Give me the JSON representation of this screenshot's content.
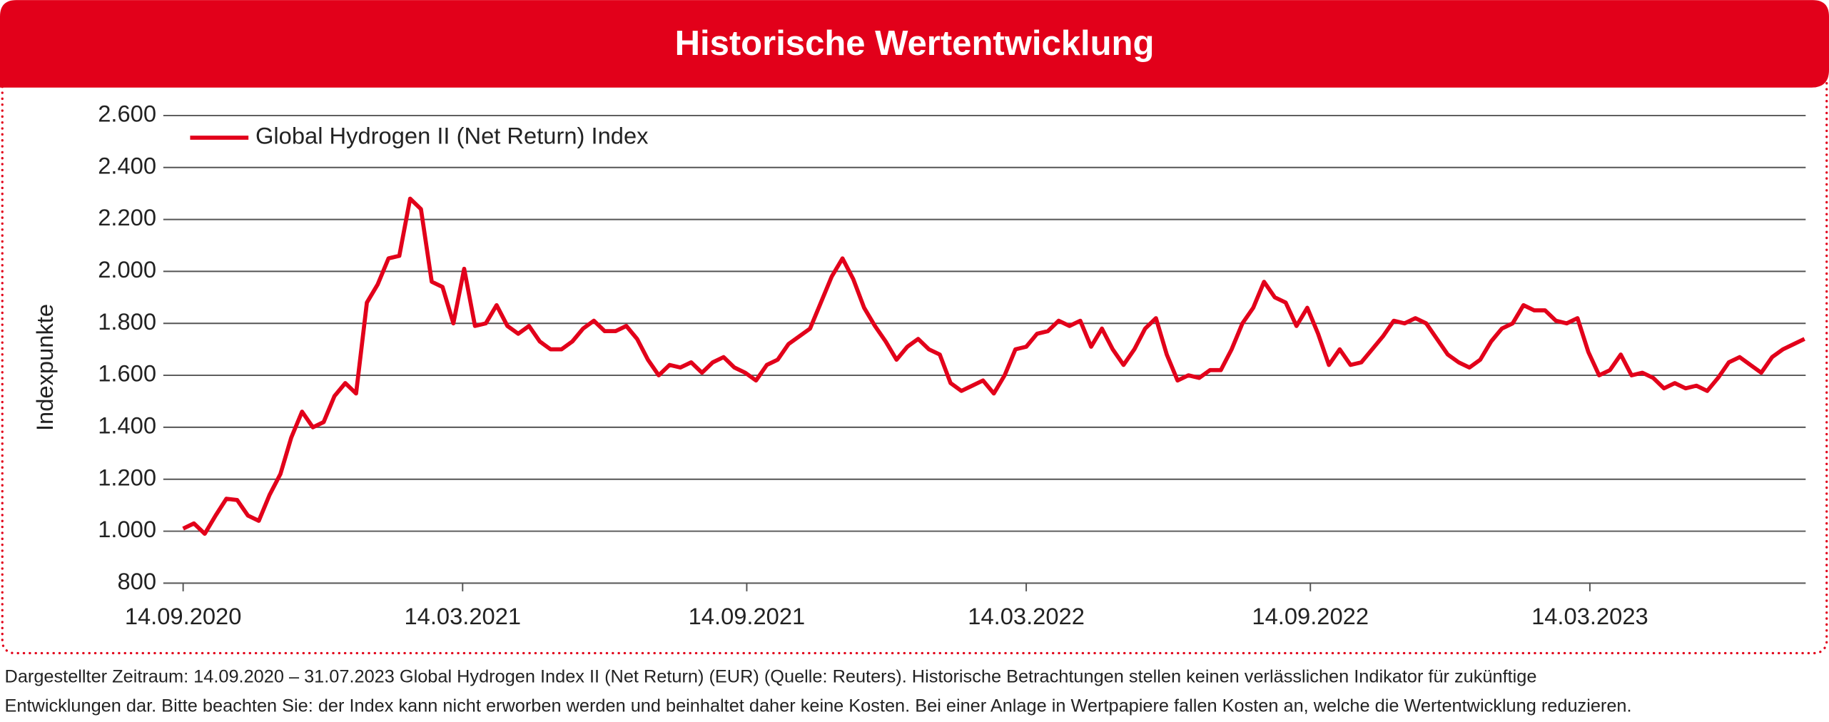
{
  "chart_data": {
    "type": "line",
    "title": "Historische Wertentwicklung",
    "y_label": "Indexpunkte",
    "footnote": [
      "Dargestellter Zeitraum: 14.09.2020 – 31.07.2023 Global Hydrogen Index II (Net Return) (EUR) (Quelle: Reuters). Historische Betrachtungen stellen keinen verlässlichen Indikator für zukünftige",
      "Entwicklungen dar. Bitte beachten Sie: der Index kann nicht erworben werden und beinhaltet daher keine Kosten. Bei einer Anlage in Wertpapiere fallen Kosten an, welche die Wertentwicklung reduzieren."
    ],
    "xlim": [
      "14.09.2020",
      "31.07.2023"
    ],
    "xticks": [
      "14.09.2020",
      "14.03.2021",
      "14.09.2021",
      "14.03.2022",
      "14.09.2022",
      "14.03.2023"
    ],
    "ylim": [
      800,
      2600
    ],
    "yticks": [
      800,
      {
        "value": 1000,
        "label": "1.000"
      },
      {
        "value": 1200,
        "label": "1.200"
      },
      {
        "value": 1400,
        "label": "1.400"
      },
      {
        "value": 1600,
        "label": "1.600"
      },
      {
        "value": 1800,
        "label": "1.800"
      },
      {
        "value": 2000,
        "label": "2.000"
      },
      {
        "value": 2200,
        "label": "2.200"
      },
      {
        "value": 2400,
        "label": "2.400"
      },
      {
        "value": 2600,
        "label": "2.600"
      }
    ],
    "grid": true,
    "legend": "top-left",
    "x": [
      "14.09.2020",
      "21.09.2020",
      "28.09.2020",
      "05.10.2020",
      "12.10.2020",
      "19.10.2020",
      "26.10.2020",
      "02.11.2020",
      "09.11.2020",
      "16.11.2020",
      "23.11.2020",
      "30.11.2020",
      "07.12.2020",
      "14.12.2020",
      "21.12.2020",
      "28.12.2020",
      "04.01.2021",
      "11.01.2021",
      "18.01.2021",
      "25.01.2021",
      "01.02.2021",
      "08.02.2021",
      "15.02.2021",
      "22.02.2021",
      "01.03.2021",
      "08.03.2021",
      "15.03.2021",
      "22.03.2021",
      "29.03.2021",
      "05.04.2021",
      "12.04.2021",
      "19.04.2021",
      "26.04.2021",
      "03.05.2021",
      "10.05.2021",
      "17.05.2021",
      "24.05.2021",
      "31.05.2021",
      "07.06.2021",
      "14.06.2021",
      "21.06.2021",
      "28.06.2021",
      "05.07.2021",
      "12.07.2021",
      "19.07.2021",
      "26.07.2021",
      "02.08.2021",
      "09.08.2021",
      "16.08.2021",
      "23.08.2021",
      "30.08.2021",
      "06.09.2021",
      "13.09.2021",
      "20.09.2021",
      "27.09.2021",
      "04.10.2021",
      "11.10.2021",
      "18.10.2021",
      "25.10.2021",
      "01.11.2021",
      "08.11.2021",
      "15.11.2021",
      "22.11.2021",
      "29.11.2021",
      "06.12.2021",
      "13.12.2021",
      "20.12.2021",
      "27.12.2021",
      "03.01.2022",
      "10.01.2022",
      "17.01.2022",
      "24.01.2022",
      "31.01.2022",
      "07.02.2022",
      "14.02.2022",
      "21.02.2022",
      "28.02.2022",
      "07.03.2022",
      "14.03.2022",
      "21.03.2022",
      "28.03.2022",
      "04.04.2022",
      "11.04.2022",
      "18.04.2022",
      "25.04.2022",
      "02.05.2022",
      "09.05.2022",
      "16.05.2022",
      "23.05.2022",
      "30.05.2022",
      "06.06.2022",
      "13.06.2022",
      "20.06.2022",
      "27.06.2022",
      "04.07.2022",
      "11.07.2022",
      "18.07.2022",
      "25.07.2022",
      "01.08.2022",
      "08.08.2022",
      "15.08.2022",
      "22.08.2022",
      "29.08.2022",
      "05.09.2022",
      "12.09.2022",
      "19.09.2022",
      "26.09.2022",
      "03.10.2022",
      "10.10.2022",
      "17.10.2022",
      "24.10.2022",
      "31.10.2022",
      "07.11.2022",
      "14.11.2022",
      "21.11.2022",
      "28.11.2022",
      "05.12.2022",
      "12.12.2022",
      "19.12.2022",
      "26.12.2022",
      "02.01.2023",
      "09.01.2023",
      "16.01.2023",
      "23.01.2023",
      "30.01.2023",
      "06.02.2023",
      "13.02.2023",
      "20.02.2023",
      "27.02.2023",
      "06.03.2023",
      "13.03.2023",
      "20.03.2023",
      "27.03.2023",
      "03.04.2023",
      "10.04.2023",
      "17.04.2023",
      "24.04.2023",
      "01.05.2023",
      "08.05.2023",
      "15.05.2023",
      "22.05.2023",
      "29.05.2023",
      "05.06.2023",
      "12.06.2023",
      "19.06.2023",
      "26.06.2023",
      "03.07.2023",
      "10.07.2023",
      "17.07.2023",
      "24.07.2023",
      "31.07.2023"
    ],
    "series": [
      {
        "name": "Global Hydrogen II (Net Return) Index",
        "color": "#e2001a",
        "values": [
          1010,
          1030,
          990,
          1060,
          1125,
          1120,
          1060,
          1040,
          1140,
          1220,
          1360,
          1460,
          1400,
          1420,
          1520,
          1570,
          1530,
          1880,
          1950,
          2050,
          2060,
          2280,
          2240,
          1960,
          1940,
          1800,
          2010,
          1790,
          1800,
          1870,
          1790,
          1760,
          1790,
          1730,
          1700,
          1700,
          1730,
          1780,
          1810,
          1770,
          1770,
          1790,
          1740,
          1660,
          1600,
          1640,
          1630,
          1650,
          1610,
          1650,
          1670,
          1630,
          1610,
          1580,
          1640,
          1660,
          1720,
          1750,
          1780,
          1880,
          1980,
          2050,
          1970,
          1860,
          1790,
          1730,
          1660,
          1710,
          1740,
          1700,
          1680,
          1570,
          1540,
          1560,
          1580,
          1530,
          1600,
          1700,
          1710,
          1760,
          1770,
          1810,
          1790,
          1810,
          1710,
          1780,
          1700,
          1640,
          1700,
          1780,
          1820,
          1680,
          1580,
          1600,
          1590,
          1620,
          1620,
          1700,
          1800,
          1860,
          1960,
          1900,
          1880,
          1790,
          1860,
          1760,
          1640,
          1700,
          1640,
          1650,
          1700,
          1750,
          1810,
          1800,
          1820,
          1800,
          1740,
          1680,
          1650,
          1630,
          1660,
          1730,
          1780,
          1800,
          1870,
          1850,
          1850,
          1810,
          1800,
          1820,
          1690,
          1600,
          1620,
          1680,
          1600,
          1610,
          1590,
          1550,
          1570,
          1550,
          1560,
          1540,
          1590,
          1650,
          1670,
          1640,
          1610,
          1670,
          1700,
          1720,
          1740
        ]
      }
    ]
  }
}
